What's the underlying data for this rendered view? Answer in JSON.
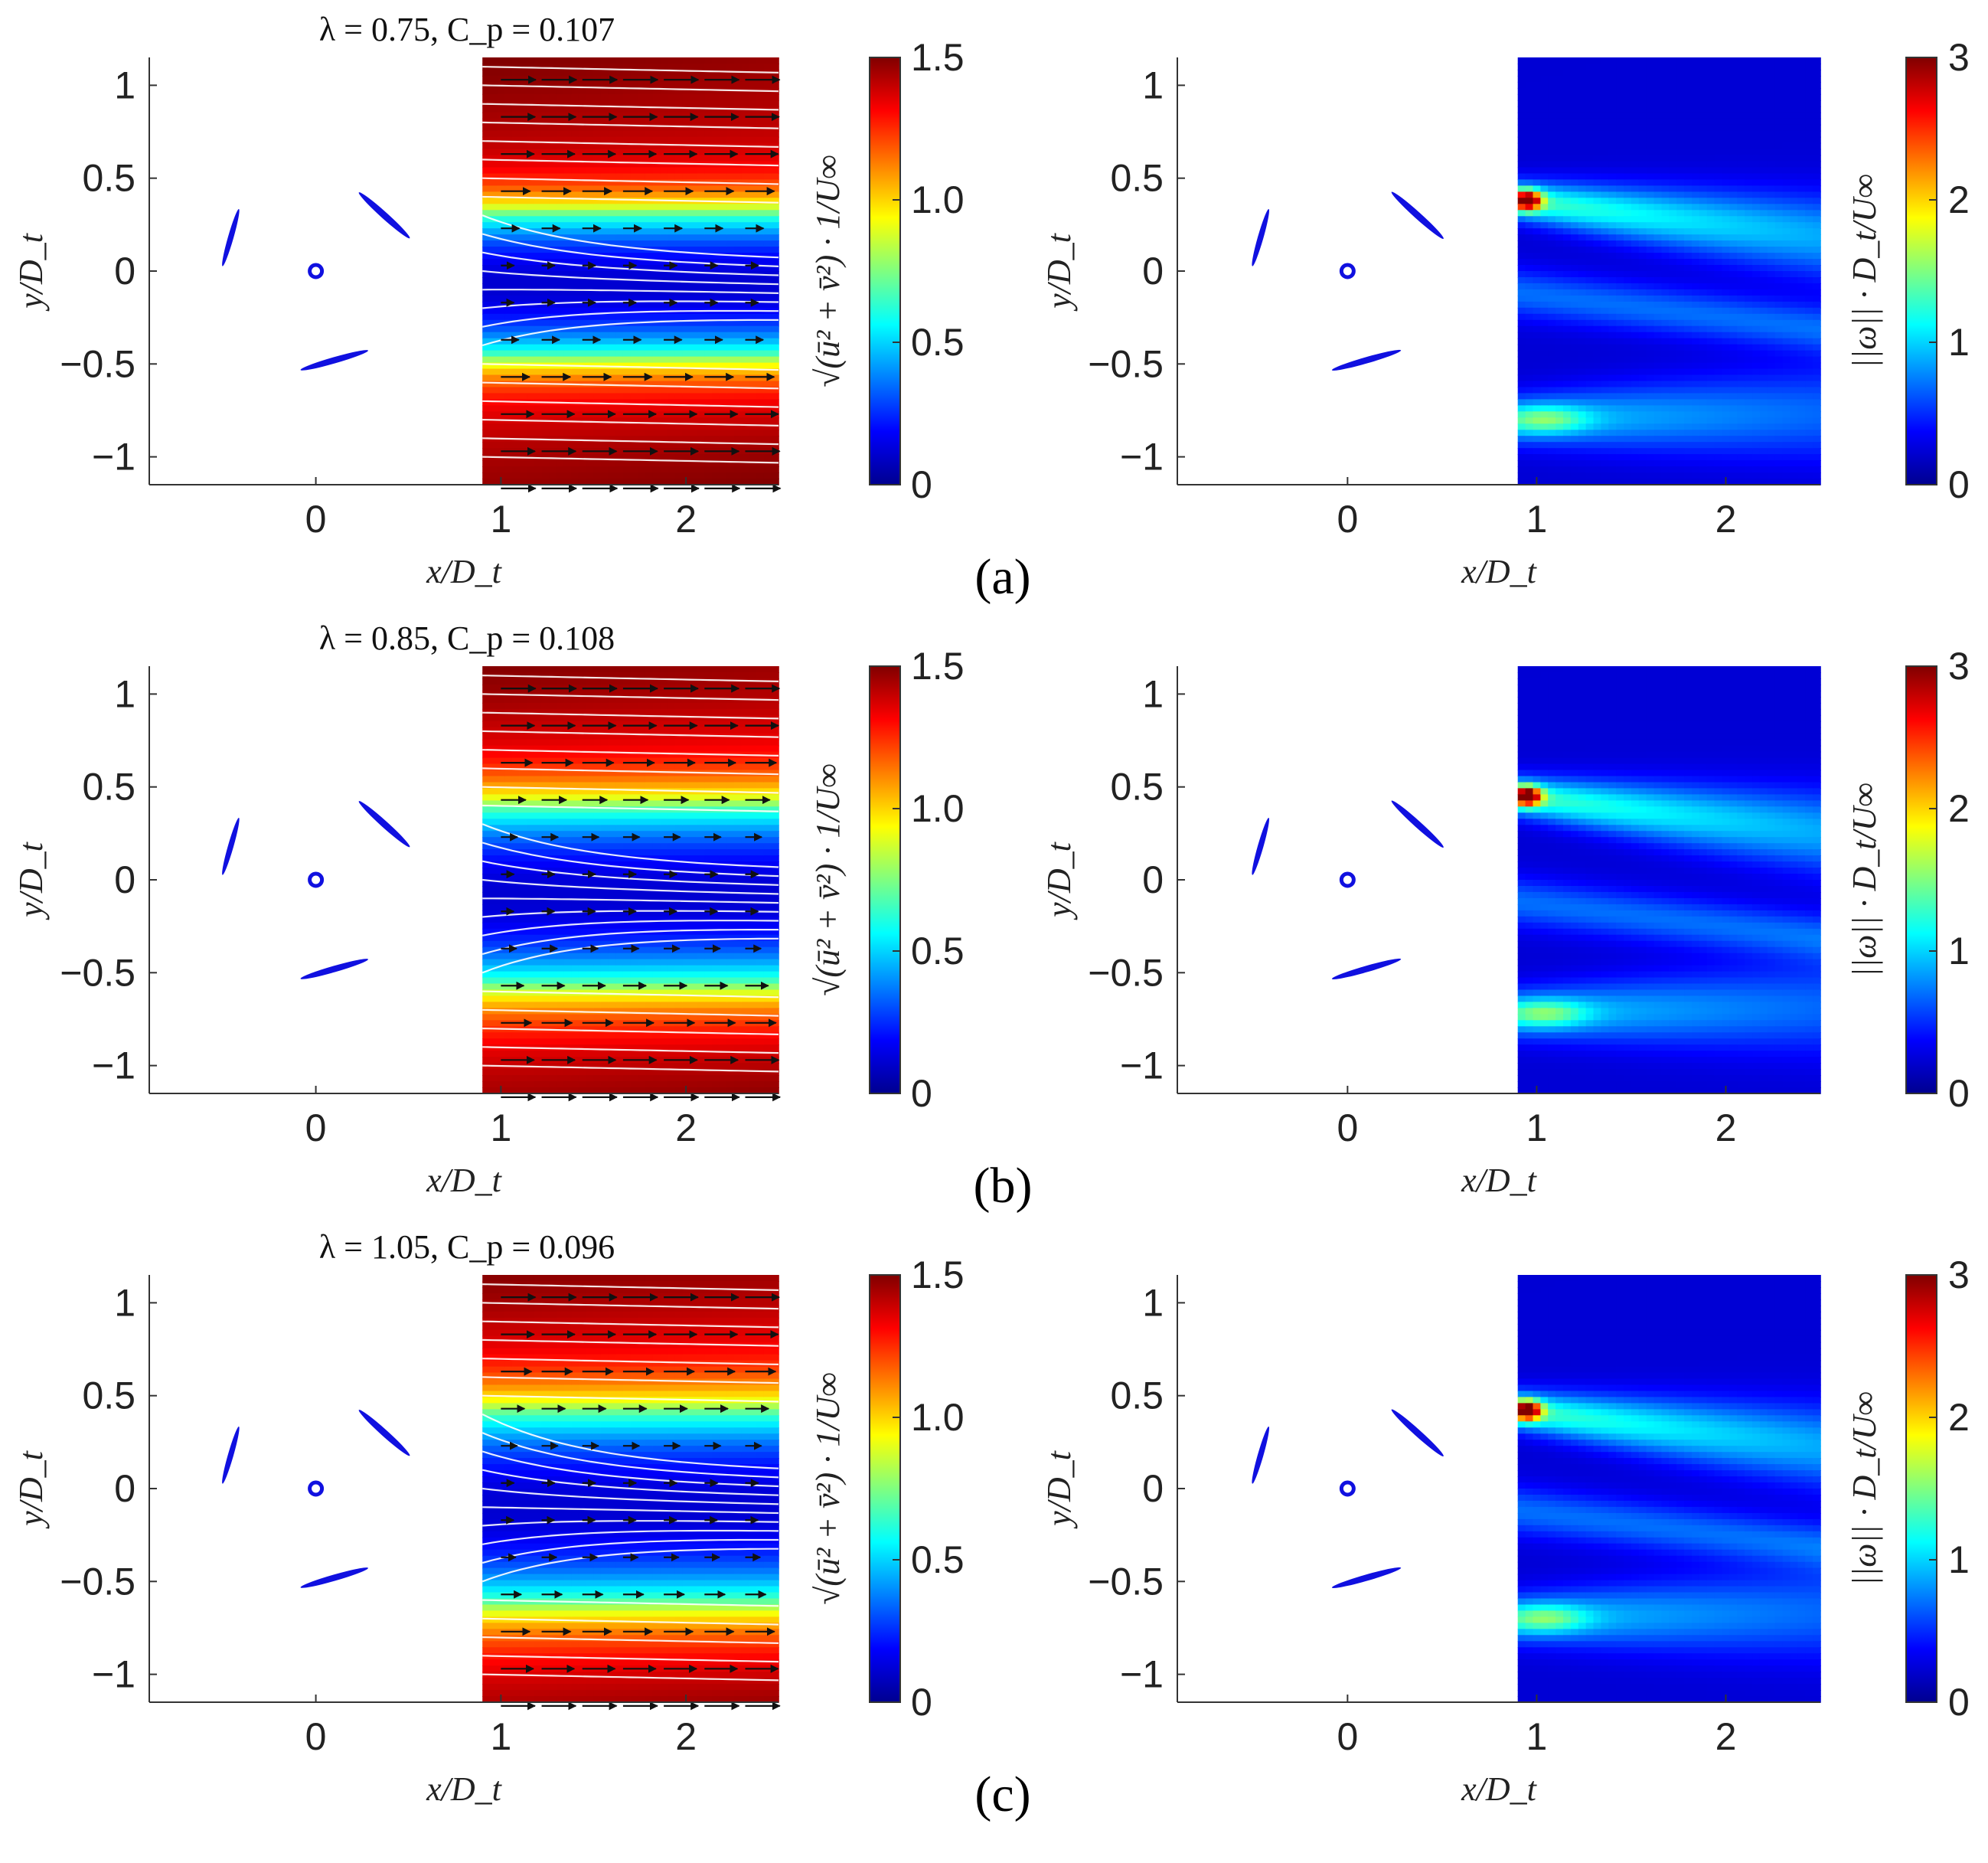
{
  "figure": {
    "panel_labels": [
      "(a)",
      "(b)",
      "(c)"
    ]
  },
  "chart_data": [
    {
      "type": "heatmap",
      "row": "a",
      "quantity": "velocity",
      "title": "λ = 0.75, C_p = 0.107",
      "xlabel": "x/D_t",
      "ylabel": "y/D_t",
      "colorbar_label": "√(ū² + v̄²) · 1/U∞",
      "xticks": [
        "0",
        "1",
        "2"
      ],
      "yticks": [
        "1",
        "0.5",
        "0",
        "−0.5",
        "−1"
      ],
      "cticks": [
        "0",
        "0.5",
        "1.0",
        "1.5"
      ],
      "xlim": [
        -0.9,
        2.5
      ],
      "ylim": [
        -1.15,
        1.15
      ],
      "clim": [
        0,
        1.5
      ],
      "measurement_window_x": [
        0.9,
        2.5
      ],
      "wake_low_speed_band_y": [
        -0.45,
        0.3
      ],
      "blade_color": "#1010e0"
    },
    {
      "type": "heatmap",
      "row": "a",
      "quantity": "vorticity",
      "xlabel": "x/D_t",
      "ylabel": "y/D_t",
      "colorbar_label": "||ω|| · D_t/U∞",
      "xticks": [
        "0",
        "1",
        "2"
      ],
      "yticks": [
        "1",
        "0.5",
        "0",
        "−0.5",
        "−1"
      ],
      "cticks": [
        "0",
        "1",
        "2",
        "3"
      ],
      "xlim": [
        -0.9,
        2.5
      ],
      "ylim": [
        -1.15,
        1.15
      ],
      "clim": [
        0,
        3
      ],
      "measurement_window_x": [
        0.9,
        2.5
      ],
      "shear_layer_peak_y": [
        0.38,
        -0.8
      ],
      "blade_color": "#1010e0"
    },
    {
      "type": "heatmap",
      "row": "b",
      "quantity": "velocity",
      "title": "λ = 0.85, C_p = 0.108",
      "xlabel": "x/D_t",
      "ylabel": "y/D_t",
      "colorbar_label": "√(ū² + v̄²) · 1/U∞",
      "xticks": [
        "0",
        "1",
        "2"
      ],
      "yticks": [
        "1",
        "0.5",
        "0",
        "−0.5",
        "−1"
      ],
      "cticks": [
        "0",
        "0.5",
        "1.0",
        "1.5"
      ],
      "xlim": [
        -0.9,
        2.5
      ],
      "ylim": [
        -1.15,
        1.15
      ],
      "clim": [
        0,
        1.5
      ],
      "measurement_window_x": [
        0.9,
        2.5
      ],
      "wake_low_speed_band_y": [
        -0.55,
        0.38
      ],
      "blade_color": "#1010e0"
    },
    {
      "type": "heatmap",
      "row": "b",
      "quantity": "vorticity",
      "xlabel": "x/D_t",
      "ylabel": "y/D_t",
      "colorbar_label": "||ω|| · D_t/U∞",
      "xticks": [
        "0",
        "1",
        "2"
      ],
      "yticks": [
        "1",
        "0.5",
        "0",
        "−0.5",
        "−1"
      ],
      "cticks": [
        "0",
        "1",
        "2",
        "3"
      ],
      "xlim": [
        -0.9,
        2.5
      ],
      "ylim": [
        -1.15,
        1.15
      ],
      "clim": [
        0,
        3
      ],
      "measurement_window_x": [
        0.9,
        2.5
      ],
      "shear_layer_peak_y": [
        0.45,
        -0.72
      ],
      "blade_color": "#1010e0"
    },
    {
      "type": "heatmap",
      "row": "c",
      "quantity": "velocity",
      "title": "λ = 1.05, C_p = 0.096",
      "xlabel": "x/D_t",
      "ylabel": "y/D_t",
      "colorbar_label": "√(ū² + v̄²) · 1/U∞",
      "xticks": [
        "0",
        "1",
        "2"
      ],
      "yticks": [
        "1",
        "0.5",
        "0",
        "−0.5",
        "−1"
      ],
      "cticks": [
        "0",
        "0.5",
        "1.0",
        "1.5"
      ],
      "xlim": [
        -0.9,
        2.5
      ],
      "ylim": [
        -1.15,
        1.15
      ],
      "clim": [
        0,
        1.5
      ],
      "measurement_window_x": [
        0.9,
        2.5
      ],
      "wake_low_speed_band_y": [
        -0.6,
        0.4
      ],
      "blade_color": "#1010e0"
    },
    {
      "type": "heatmap",
      "row": "c",
      "quantity": "vorticity",
      "xlabel": "x/D_t",
      "ylabel": "y/D_t",
      "colorbar_label": "||ω|| · D_t/U∞",
      "xticks": [
        "0",
        "1",
        "2"
      ],
      "yticks": [
        "1",
        "0.5",
        "0",
        "−0.5",
        "−1"
      ],
      "cticks": [
        "0",
        "1",
        "2",
        "3"
      ],
      "xlim": [
        -0.9,
        2.5
      ],
      "ylim": [
        -1.15,
        1.15
      ],
      "clim": [
        0,
        3
      ],
      "measurement_window_x": [
        0.9,
        2.5
      ],
      "shear_layer_peak_y": [
        0.42,
        -0.7
      ],
      "blade_color": "#1010e0"
    }
  ]
}
